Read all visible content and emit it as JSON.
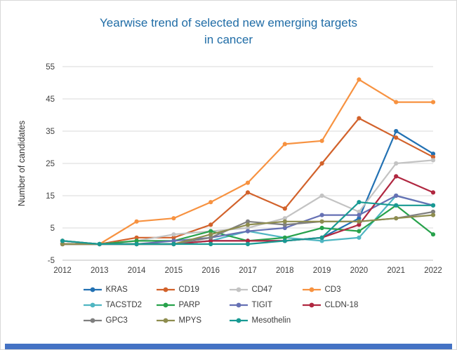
{
  "title": {
    "line1": "Yearwise trend of selected new emerging targets",
    "line2": "in cancer"
  },
  "colors": {
    "title": "#1f6ca6",
    "tick_text": "#404040",
    "legend_text": "#3b3b3b",
    "grid": "#d9d9d9",
    "axis": "#bfbfbf",
    "background": "#ffffff",
    "border": "#d8d8d8",
    "footer_bar": "#4472c4"
  },
  "chart_data": {
    "type": "line",
    "title": "Yearwise trend of selected new emerging targets in cancer",
    "xlabel": "",
    "ylabel": "Number of candidates",
    "x": [
      "2012",
      "2013",
      "2014",
      "2015",
      "2016",
      "2017",
      "2018",
      "2019",
      "2020",
      "2021",
      "2022"
    ],
    "ylim": [
      -5,
      55
    ],
    "yticks": [
      -5,
      5,
      15,
      25,
      35,
      45,
      55
    ],
    "grid": true,
    "legend_position": "bottom",
    "series": [
      {
        "name": "KRAS",
        "color": "#2271b3",
        "values": [
          0,
          0,
          0,
          0,
          1,
          1,
          1,
          2,
          8,
          35,
          28
        ]
      },
      {
        "name": "CD19",
        "color": "#d2622b",
        "values": [
          1,
          0,
          2,
          2,
          6,
          16,
          11,
          25,
          39,
          33,
          27
        ]
      },
      {
        "name": "CD47",
        "color": "#c3c3c3",
        "values": [
          0,
          0,
          1,
          3,
          4,
          5,
          8,
          15,
          10,
          25,
          26
        ]
      },
      {
        "name": "CD3",
        "color": "#f79240",
        "values": [
          0,
          0,
          7,
          8,
          13,
          19,
          31,
          32,
          51,
          44,
          44
        ]
      },
      {
        "name": "TACSTD2",
        "color": "#4fb6c2",
        "values": [
          1,
          0,
          0,
          0,
          1,
          4,
          2,
          1,
          2,
          15,
          12
        ]
      },
      {
        "name": "PARP",
        "color": "#28a24c",
        "values": [
          0,
          0,
          1,
          1,
          4,
          1,
          2,
          5,
          4,
          12,
          3
        ]
      },
      {
        "name": "TIGIT",
        "color": "#6671b4",
        "values": [
          0,
          0,
          0,
          1,
          2,
          4,
          5,
          9,
          9,
          15,
          12
        ]
      },
      {
        "name": "CLDN-18",
        "color": "#b02740",
        "values": [
          0,
          0,
          0,
          0,
          1,
          1,
          1,
          2,
          6,
          21,
          16
        ]
      },
      {
        "name": "GPC3",
        "color": "#7f7f7f",
        "values": [
          1,
          0,
          0,
          0,
          2,
          7,
          6,
          7,
          7,
          8,
          10
        ]
      },
      {
        "name": "MPYS",
        "color": "#8e8d4f",
        "values": [
          0,
          0,
          0,
          0,
          3,
          6,
          7,
          7,
          7,
          8,
          9
        ]
      },
      {
        "name": "Mesothelin",
        "color": "#189a93",
        "values": [
          1,
          0,
          0,
          0,
          0,
          0,
          1,
          2,
          13,
          12,
          12
        ]
      }
    ]
  }
}
